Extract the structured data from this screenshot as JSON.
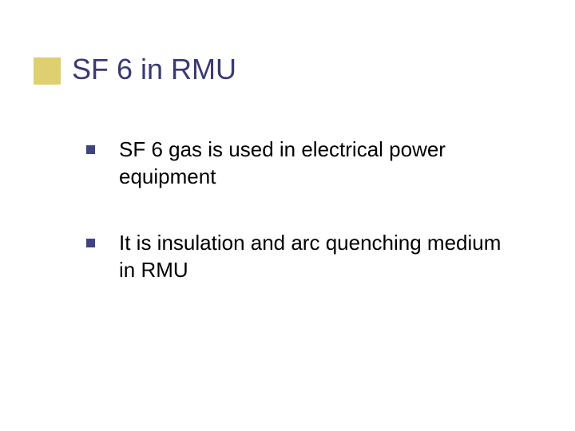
{
  "slide": {
    "title": "SF 6 in RMU",
    "title_color": "#3a3a70",
    "title_fontsize": 36,
    "accent_box_color": "#ded070",
    "background_color": "#ffffff",
    "bullet_marker_color": "#3e4482",
    "bullet_text_color": "#000000",
    "bullet_fontsize": 26,
    "bullets": [
      {
        "text": "SF 6 gas is used in electrical power equipment"
      },
      {
        "text": "It is insulation  and arc quenching medium in RMU"
      }
    ]
  }
}
